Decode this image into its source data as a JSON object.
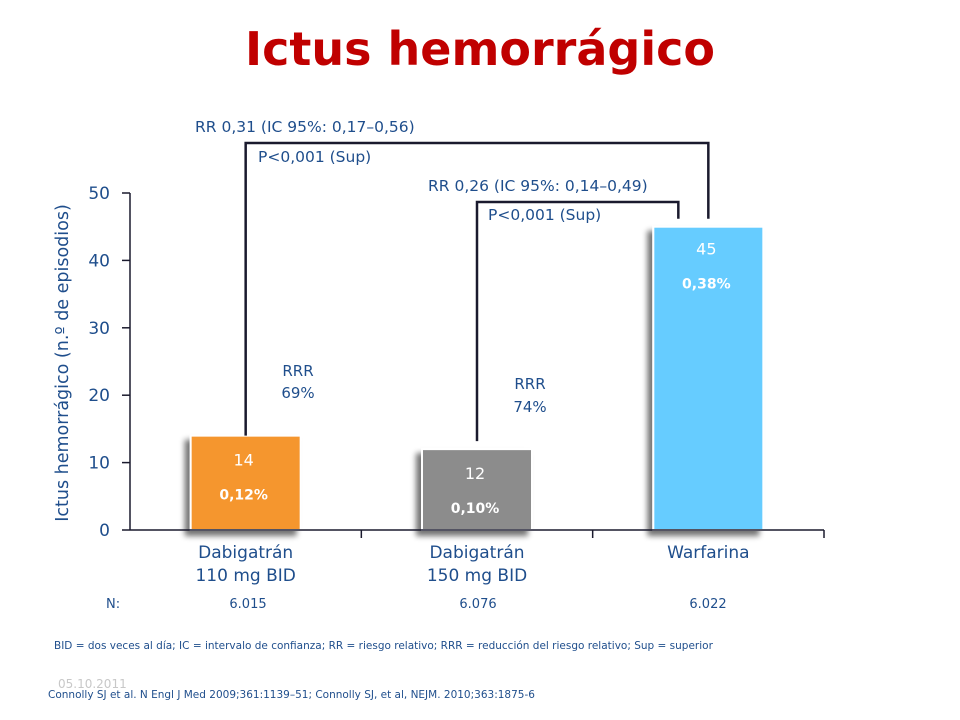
{
  "title": "Ictus hemorrágico",
  "chart_data": {
    "type": "bar",
    "ylabel": "Ictus hemorrágico (n.º de episodios)",
    "ylim": [
      0,
      50
    ],
    "yticks": [
      0,
      10,
      20,
      30,
      40,
      50
    ],
    "categories": [
      "Dabigatrán 110 mg BID",
      "Dabigatrán 150 mg BID",
      "Warfarina"
    ],
    "category_lines": [
      [
        "Dabigatrán",
        "110 mg BID"
      ],
      [
        "Dabigatrán",
        "150 mg BID"
      ],
      [
        "Warfarina"
      ]
    ],
    "values": [
      14,
      12,
      45
    ],
    "percent_labels": [
      "0,12%",
      "0,10%",
      "0,38%"
    ],
    "bar_colors": [
      "#f5962e",
      "#8c8c8c",
      "#66ccff"
    ],
    "comparisons": [
      {
        "rr": "RR 0,31 (IC 95%: 0,17–0,56)",
        "p": "P<0,001 (Sup)",
        "rrr": [
          "RRR",
          "69%"
        ]
      },
      {
        "rr": "RR 0,26 (IC 95%: 0,14–0,49)",
        "p": "P<0,001 (Sup)",
        "rrr": [
          "RRR",
          "74%"
        ]
      }
    ]
  },
  "n_row": {
    "label": "N:",
    "values": [
      "6.015",
      "6.076",
      "6.022"
    ]
  },
  "footnote": "BID = dos veces al día; IC = intervalo de confianza; RR = riesgo relativo; RRR = reducción del riesgo relativo; Sup = superior",
  "date": "05.10.2011",
  "reference": "Connolly SJ et al. N Engl J Med 2009;361:1139–51;  Connolly SJ, et al, NEJM. 2010;363:1875-6",
  "colors": {
    "title": "#c00000",
    "text": "#1f4e8c",
    "axis": "#1a1a2e"
  }
}
